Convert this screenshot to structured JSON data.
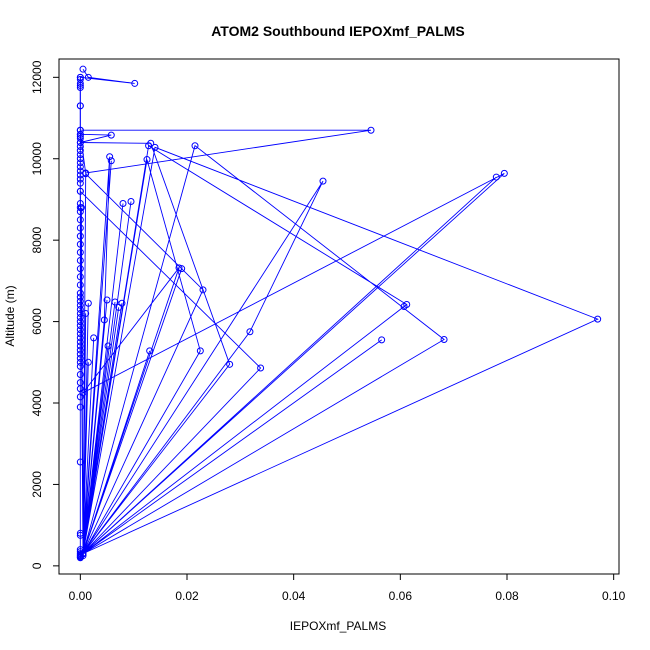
{
  "chart_data": {
    "type": "line",
    "title": "ATOM2 Southbound IEPOXmf_PALMS",
    "xlabel": "IEPOXmf_PALMS",
    "ylabel": "Altitude (m)",
    "xlim": [
      -0.004,
      0.101
    ],
    "ylim": [
      -200,
      12450
    ],
    "xticks": [
      0.0,
      0.02,
      0.04,
      0.06,
      0.08,
      0.1
    ],
    "xtick_labels": [
      "0.00",
      "0.02",
      "0.04",
      "0.06",
      "0.08",
      "0.10"
    ],
    "yticks": [
      0,
      2000,
      4000,
      6000,
      8000,
      10000,
      12000
    ],
    "ytick_labels": [
      "0",
      "2000",
      "4000",
      "6000",
      "8000",
      "10000",
      "12000"
    ],
    "grid": false,
    "series": [
      {
        "color": "#0000ff",
        "marker": "open-circle",
        "points": [
          [
            0.0005,
            12200
          ],
          [
            0.0015,
            12000
          ],
          [
            0.0102,
            11850
          ],
          [
            0,
            12000
          ],
          [
            0,
            11800
          ],
          [
            0,
            11300
          ],
          [
            0,
            10700
          ],
          [
            0.0545,
            10700
          ],
          [
            0.001,
            9650
          ],
          [
            0,
            10600
          ],
          [
            0.0058,
            10580
          ],
          [
            0,
            10400
          ],
          [
            0.0132,
            10380
          ],
          [
            0.028,
            4950
          ],
          [
            0.0005,
            300
          ],
          [
            0.0565,
            5550
          ],
          [
            0.0005,
            300
          ],
          [
            0.0128,
            10320
          ],
          [
            0.0612,
            6420
          ],
          [
            0.0005,
            300
          ],
          [
            0.0215,
            10320
          ],
          [
            0.0682,
            5560
          ],
          [
            0.0005,
            300
          ],
          [
            0.0125,
            9980
          ],
          [
            0.0225,
            5280
          ],
          [
            0.0005,
            300
          ],
          [
            0.0055,
            10050
          ],
          [
            0.0045,
            6040
          ],
          [
            0.0005,
            300
          ],
          [
            0.001,
            9630
          ],
          [
            0.023,
            6780
          ],
          [
            0.0005,
            300
          ],
          [
            0.014,
            10280
          ],
          [
            0.097,
            6060
          ],
          [
            0.0005,
            300
          ],
          [
            0.0795,
            9640
          ],
          [
            0.0005,
            4250
          ],
          [
            0.0185,
            7320
          ],
          [
            0.0005,
            300
          ],
          [
            0.078,
            9550
          ],
          [
            0.0005,
            300
          ],
          [
            0.0455,
            9450
          ],
          [
            0.0318,
            5750
          ],
          [
            0.0005,
            300
          ],
          [
            0.0607,
            6370
          ],
          [
            0.0005,
            300
          ],
          [
            0.0338,
            4860
          ],
          [
            0,
            9200
          ],
          [
            0.0005,
            300
          ],
          [
            0.0058,
            9950
          ],
          [
            0.0005,
            300
          ],
          [
            0.0095,
            8950
          ],
          [
            0.0005,
            300
          ],
          [
            0.0078,
            6450
          ],
          [
            0.0005,
            300
          ],
          [
            0.0065,
            6480
          ],
          [
            0.0005,
            300
          ],
          [
            0.005,
            6530
          ],
          [
            0.0005,
            300
          ],
          [
            0.0052,
            5400
          ],
          [
            0.0005,
            300
          ],
          [
            0.0025,
            5600
          ],
          [
            0.0005,
            300
          ],
          [
            0.0015,
            6450
          ],
          [
            0.0005,
            300
          ],
          [
            0.001,
            6200
          ],
          [
            0.0005,
            300
          ],
          [
            0.0015,
            5000
          ],
          [
            0.0005,
            300
          ],
          [
            0.013,
            5280
          ],
          [
            0.0005,
            300
          ],
          [
            0.0072,
            6350
          ],
          [
            0.0005,
            300
          ],
          [
            0.019,
            7300
          ],
          [
            0.0005,
            300
          ],
          [
            0.008,
            8900
          ],
          [
            0.0005,
            300
          ],
          [
            0.0002,
            8800
          ],
          [
            0.0005,
            300
          ],
          [
            0.0005,
            250
          ]
        ]
      }
    ],
    "column_points": [
      [
        0,
        12000
      ],
      [
        0,
        11950
      ],
      [
        0,
        11850
      ],
      [
        0,
        11750
      ],
      [
        0,
        11300
      ],
      [
        0,
        10700
      ],
      [
        0,
        10600
      ],
      [
        0,
        10550
      ],
      [
        0,
        10500
      ],
      [
        0,
        10400
      ],
      [
        0,
        10300
      ],
      [
        0,
        10200
      ],
      [
        0,
        10100
      ],
      [
        0,
        10000
      ],
      [
        0,
        9900
      ],
      [
        0,
        9800
      ],
      [
        0,
        9700
      ],
      [
        0,
        9600
      ],
      [
        0,
        9500
      ],
      [
        0,
        9400
      ],
      [
        0,
        9200
      ],
      [
        0,
        8900
      ],
      [
        0,
        8800
      ],
      [
        0,
        8700
      ],
      [
        0,
        8500
      ],
      [
        0,
        8300
      ],
      [
        0,
        8100
      ],
      [
        0,
        7900
      ],
      [
        0,
        7700
      ],
      [
        0,
        7500
      ],
      [
        0,
        7300
      ],
      [
        0,
        7100
      ],
      [
        0,
        6900
      ],
      [
        0,
        6700
      ],
      [
        0,
        6600
      ],
      [
        0,
        6500
      ],
      [
        0,
        6400
      ],
      [
        0,
        6300
      ],
      [
        0,
        6200
      ],
      [
        0,
        6100
      ],
      [
        0,
        6000
      ],
      [
        0,
        5900
      ],
      [
        0,
        5800
      ],
      [
        0,
        5700
      ],
      [
        0,
        5600
      ],
      [
        0,
        5500
      ],
      [
        0,
        5400
      ],
      [
        0,
        5300
      ],
      [
        0,
        5200
      ],
      [
        0,
        5100
      ],
      [
        0,
        5000
      ],
      [
        0,
        4900
      ],
      [
        0,
        4700
      ],
      [
        0,
        4500
      ],
      [
        0,
        4350
      ],
      [
        0,
        4150
      ],
      [
        0,
        3900
      ],
      [
        0,
        2550
      ],
      [
        0,
        800
      ],
      [
        0,
        750
      ],
      [
        0,
        400
      ],
      [
        0,
        350
      ],
      [
        0,
        300
      ],
      [
        0,
        270
      ],
      [
        0,
        250
      ],
      [
        0,
        230
      ],
      [
        0,
        210
      ],
      [
        0,
        200
      ]
    ]
  }
}
